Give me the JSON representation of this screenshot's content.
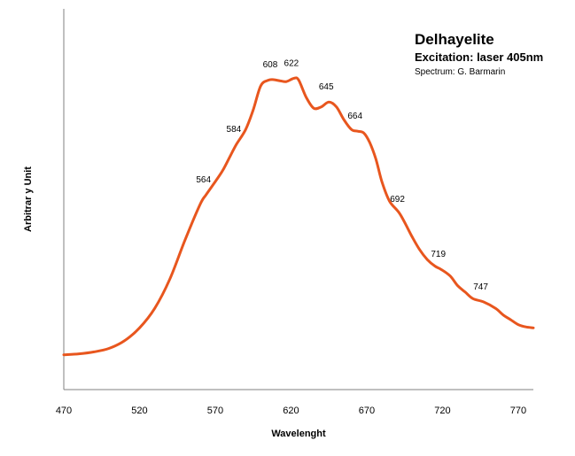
{
  "chart_data": {
    "type": "line",
    "title": "Delhayelite",
    "subtitle": "Excitation: laser 405nm",
    "credit": "Spectrum: G. Barmarin",
    "xlabel": "Wavelenght",
    "ylabel": "Arbitrar y Unit",
    "xlim": [
      470,
      780
    ],
    "ylim": [
      0,
      1
    ],
    "xticks": [
      470,
      520,
      570,
      620,
      670,
      720,
      770
    ],
    "grid": false,
    "line_color": "#E8561E",
    "series": [
      {
        "x": [
          470,
          480,
          490,
          500,
          510,
          520,
          530,
          540,
          550,
          560,
          564,
          570,
          575,
          580,
          584,
          590,
          595,
          600,
          605,
          608,
          613,
          617,
          622,
          625,
          630,
          635,
          640,
          645,
          650,
          655,
          660,
          664,
          668,
          672,
          676,
          680,
          685,
          692,
          700,
          705,
          710,
          715,
          719,
          725,
          730,
          735,
          740,
          747,
          755,
          760,
          765,
          770,
          775,
          780
        ],
        "y": [
          0.107,
          0.11,
          0.116,
          0.127,
          0.15,
          0.19,
          0.25,
          0.34,
          0.46,
          0.57,
          0.6,
          0.64,
          0.675,
          0.72,
          0.755,
          0.8,
          0.86,
          0.935,
          0.952,
          0.954,
          0.95,
          0.948,
          0.958,
          0.953,
          0.9,
          0.866,
          0.87,
          0.885,
          0.87,
          0.83,
          0.8,
          0.795,
          0.79,
          0.76,
          0.71,
          0.64,
          0.58,
          0.54,
          0.47,
          0.43,
          0.4,
          0.38,
          0.37,
          0.35,
          0.32,
          0.3,
          0.28,
          0.27,
          0.25,
          0.23,
          0.215,
          0.2,
          0.193,
          0.19
        ]
      }
    ],
    "peak_labels": [
      {
        "x": 564,
        "y": 0.6,
        "label": "564"
      },
      {
        "x": 584,
        "y": 0.755,
        "label": "584"
      },
      {
        "x": 608,
        "y": 0.954,
        "label": "608"
      },
      {
        "x": 622,
        "y": 0.958,
        "label": "622"
      },
      {
        "x": 645,
        "y": 0.885,
        "label": "645"
      },
      {
        "x": 664,
        "y": 0.795,
        "label": "664"
      },
      {
        "x": 692,
        "y": 0.54,
        "label": "692"
      },
      {
        "x": 719,
        "y": 0.37,
        "label": "719"
      },
      {
        "x": 747,
        "y": 0.27,
        "label": "747"
      }
    ]
  }
}
